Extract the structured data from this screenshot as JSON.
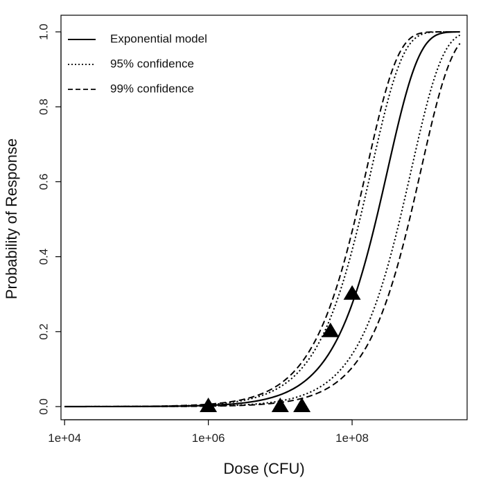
{
  "chart_data": {
    "type": "line",
    "title": "",
    "xlabel": "Dose (CFU)",
    "ylabel": "Probability of Response",
    "x_scale": "log10",
    "xlim_log10": [
      3.95,
      9.6
    ],
    "ylim": [
      0,
      1
    ],
    "x_ticks": [
      {
        "log10": 4,
        "label": "1e+04"
      },
      {
        "log10": 6,
        "label": "1e+06"
      },
      {
        "log10": 8,
        "label": "1e+08"
      }
    ],
    "y_ticks": [
      {
        "value": 0.0,
        "label": "0.0"
      },
      {
        "value": 0.2,
        "label": "0.2"
      },
      {
        "value": 0.4,
        "label": "0.4"
      },
      {
        "value": 0.6,
        "label": "0.6"
      },
      {
        "value": 0.8,
        "label": "0.8"
      },
      {
        "value": 1.0,
        "label": "1.0"
      }
    ],
    "x_range_log10": [
      4,
      9.5
    ],
    "series": [
      {
        "name": "Exponential model",
        "style": "solid",
        "k": 3.2e-09
      },
      {
        "name": "95% confidence",
        "style": "dotted",
        "k": 5.4e-09,
        "bound": "upper"
      },
      {
        "name": "95% confidence",
        "style": "dotted",
        "k": 1.5e-09,
        "bound": "lower"
      },
      {
        "name": "99% confidence",
        "style": "dashed",
        "k": 6.3e-09,
        "bound": "upper"
      },
      {
        "name": "99% confidence",
        "style": "dashed",
        "k": 1.1e-09,
        "bound": "lower"
      }
    ],
    "legend": {
      "position": "top-left",
      "entries": [
        {
          "label": "Exponential model",
          "style": "solid"
        },
        {
          "label": "95% confidence",
          "style": "dotted"
        },
        {
          "label": "99% confidence",
          "style": "dashed"
        }
      ]
    },
    "observed_points": [
      {
        "dose": 1000000,
        "response": 0.0
      },
      {
        "dose": 10000000,
        "response": 0.0
      },
      {
        "dose": 20000000,
        "response": 0.0
      },
      {
        "dose": 50000000,
        "response": 0.2
      },
      {
        "dose": 100000000,
        "response": 0.3
      }
    ]
  }
}
